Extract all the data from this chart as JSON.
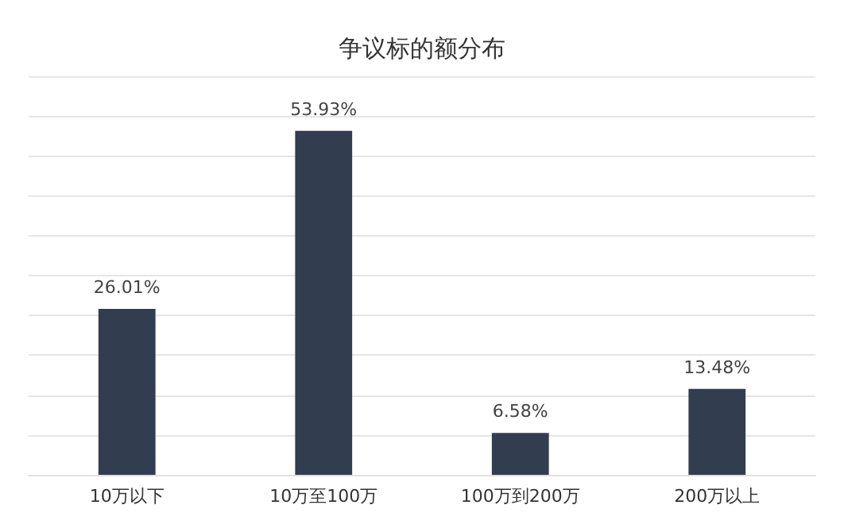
{
  "chart_data": {
    "type": "bar",
    "title": "争议标的额分布",
    "categories": [
      "10万以下",
      "10万至100万",
      "100万到200万",
      "200万以上"
    ],
    "values": [
      26.01,
      53.93,
      6.58,
      13.48
    ],
    "value_labels": [
      "26.01%",
      "53.93%",
      "6.58%",
      "13.48%"
    ],
    "color": "#323d4f",
    "ylim": [
      0,
      62.5
    ],
    "yticks": [
      {
        "value": 0,
        "label": null
      },
      {
        "value": 6.25,
        "label": null
      },
      {
        "value": 12.5,
        "label": null
      },
      {
        "value": 18.75,
        "label": null
      },
      {
        "value": 25,
        "label": null
      },
      {
        "value": 31.25,
        "label": null
      },
      {
        "value": 37.5,
        "label": null
      },
      {
        "value": 43.75,
        "label": null
      },
      {
        "value": 50,
        "label": null
      },
      {
        "value": 56.25,
        "label": null
      },
      {
        "value": 62.5,
        "label": null
      }
    ],
    "grid": "y",
    "tick_labels": "x"
  }
}
